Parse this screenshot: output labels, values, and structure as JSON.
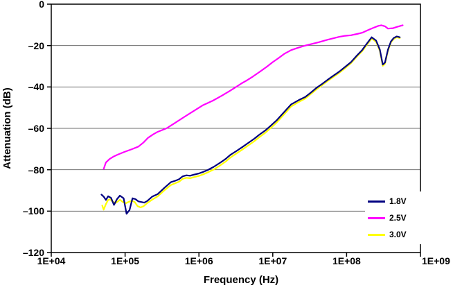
{
  "chart_data": {
    "type": "line",
    "title": "",
    "xlabel": "Frequency (Hz)",
    "ylabel": "Attenuation (dB)",
    "x_scale": "log10",
    "xlim_log10": [
      4,
      9
    ],
    "ylim": [
      -120,
      0
    ],
    "x_tick_values_log10": [
      4,
      5,
      6,
      7,
      8,
      9
    ],
    "x_tick_labels": [
      "1E+04",
      "1E+05",
      "1E+06",
      "1E+07",
      "1E+08",
      "1E+09"
    ],
    "y_tick_values": [
      0,
      -20,
      -40,
      -60,
      -80,
      -100,
      -120
    ],
    "y_tick_labels": [
      "0",
      "–20",
      "–40",
      "–60",
      "–80",
      "–100",
      "–120"
    ],
    "grid": "horizontal-only",
    "legend_position": "inside-bottom-right",
    "colors": {
      "grid": "#6e6e6e",
      "axis": "#000000",
      "background": "#ffffff"
    },
    "series": [
      {
        "name": "1.8V",
        "color": "#000080",
        "points": [
          [
            4.68,
            -92.0
          ],
          [
            4.71,
            -93.0
          ],
          [
            4.74,
            -94.6
          ],
          [
            4.77,
            -92.8
          ],
          [
            4.81,
            -93.6
          ],
          [
            4.85,
            -97.0
          ],
          [
            4.89,
            -94.2
          ],
          [
            4.93,
            -92.5
          ],
          [
            4.98,
            -93.8
          ],
          [
            5.02,
            -101.3
          ],
          [
            5.06,
            -99.5
          ],
          [
            5.1,
            -93.8
          ],
          [
            5.14,
            -94.2
          ],
          [
            5.18,
            -95.3
          ],
          [
            5.22,
            -95.6
          ],
          [
            5.26,
            -95.9
          ],
          [
            5.3,
            -95.1
          ],
          [
            5.37,
            -92.9
          ],
          [
            5.44,
            -91.8
          ],
          [
            5.53,
            -88.8
          ],
          [
            5.62,
            -86.0
          ],
          [
            5.68,
            -85.3
          ],
          [
            5.73,
            -84.6
          ],
          [
            5.78,
            -83.2
          ],
          [
            5.83,
            -82.7
          ],
          [
            5.88,
            -82.9
          ],
          [
            5.93,
            -82.4
          ],
          [
            6.0,
            -81.8
          ],
          [
            6.06,
            -81.0
          ],
          [
            6.12,
            -80.1
          ],
          [
            6.2,
            -78.6
          ],
          [
            6.28,
            -76.8
          ],
          [
            6.36,
            -74.8
          ],
          [
            6.43,
            -72.7
          ],
          [
            6.51,
            -70.9
          ],
          [
            6.59,
            -69.0
          ],
          [
            6.67,
            -67.0
          ],
          [
            6.75,
            -65.0
          ],
          [
            6.82,
            -63.0
          ],
          [
            6.9,
            -61.0
          ],
          [
            6.97,
            -58.8
          ],
          [
            7.05,
            -56.2
          ],
          [
            7.15,
            -52.3
          ],
          [
            7.25,
            -48.4
          ],
          [
            7.35,
            -46.4
          ],
          [
            7.44,
            -44.8
          ],
          [
            7.52,
            -42.6
          ],
          [
            7.59,
            -40.5
          ],
          [
            7.67,
            -38.5
          ],
          [
            7.74,
            -36.6
          ],
          [
            7.82,
            -34.6
          ],
          [
            7.9,
            -32.6
          ],
          [
            7.98,
            -30.3
          ],
          [
            8.06,
            -28.0
          ],
          [
            8.14,
            -24.8
          ],
          [
            8.21,
            -22.2
          ],
          [
            8.28,
            -18.8
          ],
          [
            8.34,
            -16.0
          ],
          [
            8.4,
            -17.6
          ],
          [
            8.45,
            -22.0
          ],
          [
            8.49,
            -29.2
          ],
          [
            8.52,
            -28.2
          ],
          [
            8.56,
            -22.0
          ],
          [
            8.6,
            -18.0
          ],
          [
            8.64,
            -16.3
          ],
          [
            8.68,
            -15.6
          ],
          [
            8.72,
            -16.0
          ]
        ]
      },
      {
        "name": "2.5V",
        "color": "#FF00FF",
        "points": [
          [
            4.71,
            -79.6
          ],
          [
            4.74,
            -76.5
          ],
          [
            4.79,
            -74.8
          ],
          [
            4.84,
            -73.7
          ],
          [
            4.9,
            -72.7
          ],
          [
            4.99,
            -71.4
          ],
          [
            5.09,
            -70.1
          ],
          [
            5.18,
            -68.8
          ],
          [
            5.25,
            -66.8
          ],
          [
            5.31,
            -64.6
          ],
          [
            5.38,
            -62.9
          ],
          [
            5.44,
            -61.7
          ],
          [
            5.56,
            -60.0
          ],
          [
            5.68,
            -57.3
          ],
          [
            5.81,
            -54.3
          ],
          [
            5.93,
            -51.6
          ],
          [
            6.05,
            -48.9
          ],
          [
            6.19,
            -46.6
          ],
          [
            6.31,
            -44.2
          ],
          [
            6.41,
            -42.1
          ],
          [
            6.5,
            -40.1
          ],
          [
            6.58,
            -38.2
          ],
          [
            6.64,
            -37.0
          ],
          [
            6.73,
            -35.0
          ],
          [
            6.83,
            -32.5
          ],
          [
            6.92,
            -30.2
          ],
          [
            7.0,
            -28.0
          ],
          [
            7.08,
            -26.0
          ],
          [
            7.16,
            -23.9
          ],
          [
            7.25,
            -22.2
          ],
          [
            7.34,
            -21.1
          ],
          [
            7.43,
            -20.1
          ],
          [
            7.53,
            -19.2
          ],
          [
            7.62,
            -18.4
          ],
          [
            7.74,
            -17.2
          ],
          [
            7.82,
            -16.5
          ],
          [
            7.9,
            -15.8
          ],
          [
            7.98,
            -15.3
          ],
          [
            8.06,
            -15.0
          ],
          [
            8.14,
            -14.4
          ],
          [
            8.21,
            -13.8
          ],
          [
            8.28,
            -12.7
          ],
          [
            8.35,
            -11.6
          ],
          [
            8.43,
            -10.5
          ],
          [
            8.47,
            -10.2
          ],
          [
            8.52,
            -10.7
          ],
          [
            8.56,
            -11.8
          ],
          [
            8.63,
            -11.6
          ],
          [
            8.68,
            -11.0
          ],
          [
            8.73,
            -10.5
          ],
          [
            8.76,
            -10.2
          ]
        ]
      },
      {
        "name": "3.0V",
        "color": "#FFFF00",
        "points": [
          [
            4.69,
            -97.3
          ],
          [
            4.71,
            -99.3
          ],
          [
            4.74,
            -96.6
          ],
          [
            4.77,
            -94.6
          ],
          [
            4.8,
            -94.3
          ],
          [
            4.83,
            -95.4
          ],
          [
            4.87,
            -96.0
          ],
          [
            4.9,
            -95.4
          ],
          [
            4.93,
            -94.5
          ],
          [
            4.97,
            -95.6
          ],
          [
            5.01,
            -96.2
          ],
          [
            5.05,
            -95.5
          ],
          [
            5.09,
            -95.0
          ],
          [
            5.13,
            -95.6
          ],
          [
            5.17,
            -97.6
          ],
          [
            5.21,
            -98.2
          ],
          [
            5.25,
            -97.6
          ],
          [
            5.3,
            -96.1
          ],
          [
            5.37,
            -94.4
          ],
          [
            5.44,
            -92.9
          ],
          [
            5.53,
            -90.0
          ],
          [
            5.62,
            -87.4
          ],
          [
            5.68,
            -86.5
          ],
          [
            5.73,
            -85.8
          ],
          [
            5.78,
            -84.4
          ],
          [
            5.83,
            -83.9
          ],
          [
            5.88,
            -84.1
          ],
          [
            5.93,
            -83.6
          ],
          [
            6.0,
            -83.0
          ],
          [
            6.06,
            -82.2
          ],
          [
            6.12,
            -81.3
          ],
          [
            6.2,
            -79.9
          ],
          [
            6.28,
            -78.1
          ],
          [
            6.36,
            -76.1
          ],
          [
            6.43,
            -74.0
          ],
          [
            6.51,
            -72.1
          ],
          [
            6.59,
            -70.2
          ],
          [
            6.67,
            -68.2
          ],
          [
            6.75,
            -66.2
          ],
          [
            6.82,
            -64.2
          ],
          [
            6.9,
            -62.1
          ],
          [
            6.97,
            -59.9
          ],
          [
            7.05,
            -57.3
          ],
          [
            7.15,
            -53.4
          ],
          [
            7.25,
            -49.4
          ],
          [
            7.35,
            -47.3
          ],
          [
            7.44,
            -45.6
          ],
          [
            7.52,
            -43.3
          ],
          [
            7.59,
            -41.2
          ],
          [
            7.67,
            -39.1
          ],
          [
            7.74,
            -37.2
          ],
          [
            7.82,
            -35.2
          ],
          [
            7.9,
            -33.2
          ],
          [
            7.98,
            -30.9
          ],
          [
            8.06,
            -28.5
          ],
          [
            8.14,
            -25.3
          ],
          [
            8.21,
            -22.8
          ],
          [
            8.28,
            -19.4
          ],
          [
            8.34,
            -16.6
          ],
          [
            8.4,
            -18.2
          ],
          [
            8.45,
            -22.6
          ],
          [
            8.49,
            -29.8
          ],
          [
            8.52,
            -28.8
          ],
          [
            8.56,
            -22.6
          ],
          [
            8.6,
            -18.5
          ],
          [
            8.64,
            -16.8
          ],
          [
            8.68,
            -16.0
          ],
          [
            8.72,
            -16.4
          ]
        ]
      }
    ]
  }
}
